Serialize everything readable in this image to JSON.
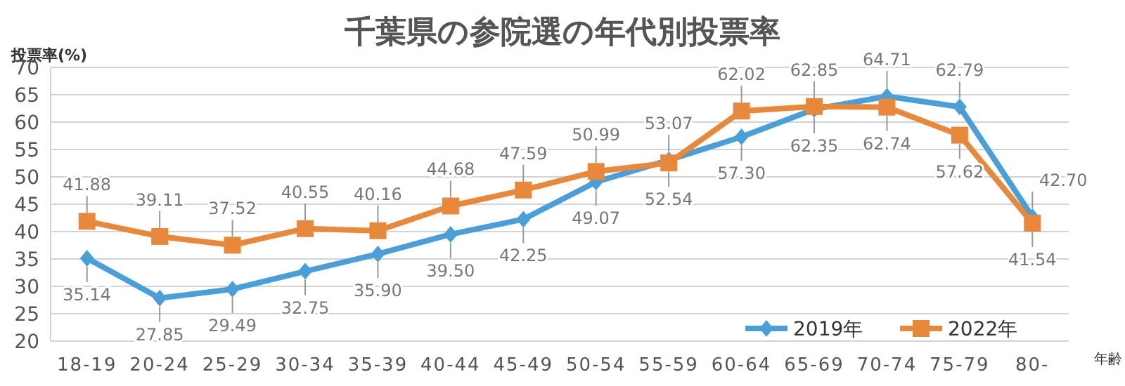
{
  "chart_data": {
    "type": "line",
    "title": "千葉県の参院選の年代別投票率",
    "ylabel": "投票率(%)",
    "xlabel": "年齢",
    "categories": [
      "18-19",
      "20-24",
      "25-29",
      "30-34",
      "35-39",
      "40-44",
      "45-49",
      "50-54",
      "55-59",
      "60-64",
      "65-69",
      "70-74",
      "75-79",
      "80-"
    ],
    "series": [
      {
        "name": "2019年",
        "color": "#4a9fd8",
        "marker": "diamond",
        "values": [
          35.14,
          27.85,
          29.49,
          32.75,
          35.9,
          39.5,
          42.25,
          49.07,
          53.07,
          57.3,
          62.35,
          64.71,
          62.79,
          42.7
        ],
        "value_labels": [
          "35.14",
          "27.85",
          "29.49",
          "32.75",
          "35.90",
          "39.50",
          "42.25",
          "49.07",
          "53.07",
          "57.30",
          "62.35",
          "64.71",
          "62.79",
          "42.70"
        ]
      },
      {
        "name": "2022年",
        "color": "#e8883a",
        "marker": "square",
        "values": [
          41.88,
          39.11,
          37.52,
          40.55,
          40.16,
          44.68,
          47.59,
          50.99,
          52.54,
          62.02,
          62.85,
          62.74,
          57.62,
          41.54
        ],
        "value_labels": [
          "41.88",
          "39.11",
          "37.52",
          "40.55",
          "40.16",
          "44.68",
          "47.59",
          "50.99",
          "52.54",
          "62.02",
          "62.85",
          "62.74",
          "57.62",
          "41.54"
        ]
      }
    ],
    "ylim": [
      20,
      70
    ],
    "yticks": [
      20,
      25,
      30,
      35,
      40,
      45,
      50,
      55,
      60,
      65,
      70
    ],
    "grid": "y",
    "legend": "bottom right"
  }
}
